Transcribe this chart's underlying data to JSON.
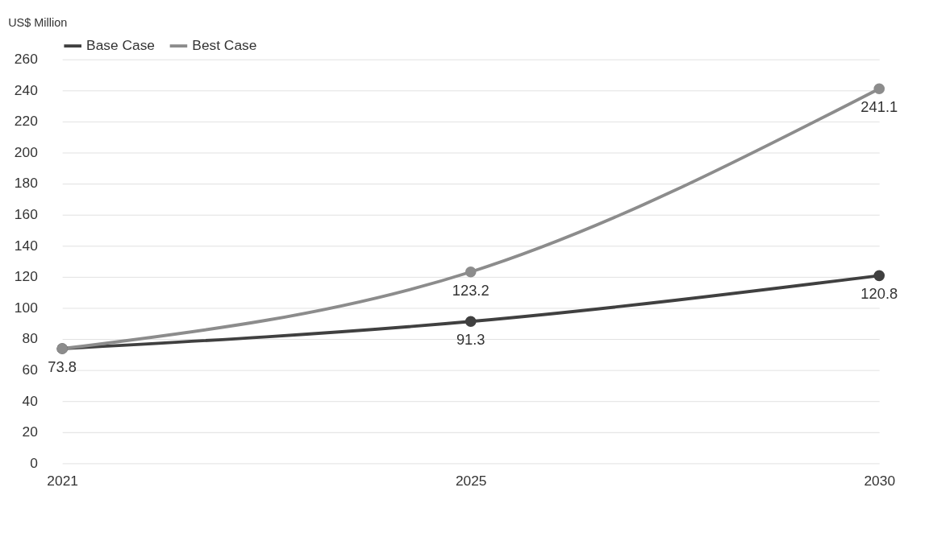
{
  "chart_data": {
    "type": "line",
    "ylabel": "US$ Million",
    "categories": [
      "2021",
      "2025",
      "2030"
    ],
    "series": [
      {
        "name": "Base Case",
        "color": "#404040",
        "values": [
          73.8,
          91.3,
          120.8
        ],
        "value_labels": [
          "73.8",
          "91.3",
          "120.8"
        ]
      },
      {
        "name": "Best Case",
        "color": "#8c8c8c",
        "values": [
          73.8,
          123.2,
          241.1
        ],
        "value_labels": [
          null,
          "123.2",
          "241.1"
        ]
      }
    ],
    "ylim": [
      0,
      260
    ],
    "yticks": [
      0,
      20,
      40,
      60,
      80,
      100,
      120,
      140,
      160,
      180,
      200,
      220,
      240,
      260
    ],
    "grid": "y",
    "legend": "top left",
    "marker": "circle",
    "line_style": "solid"
  }
}
